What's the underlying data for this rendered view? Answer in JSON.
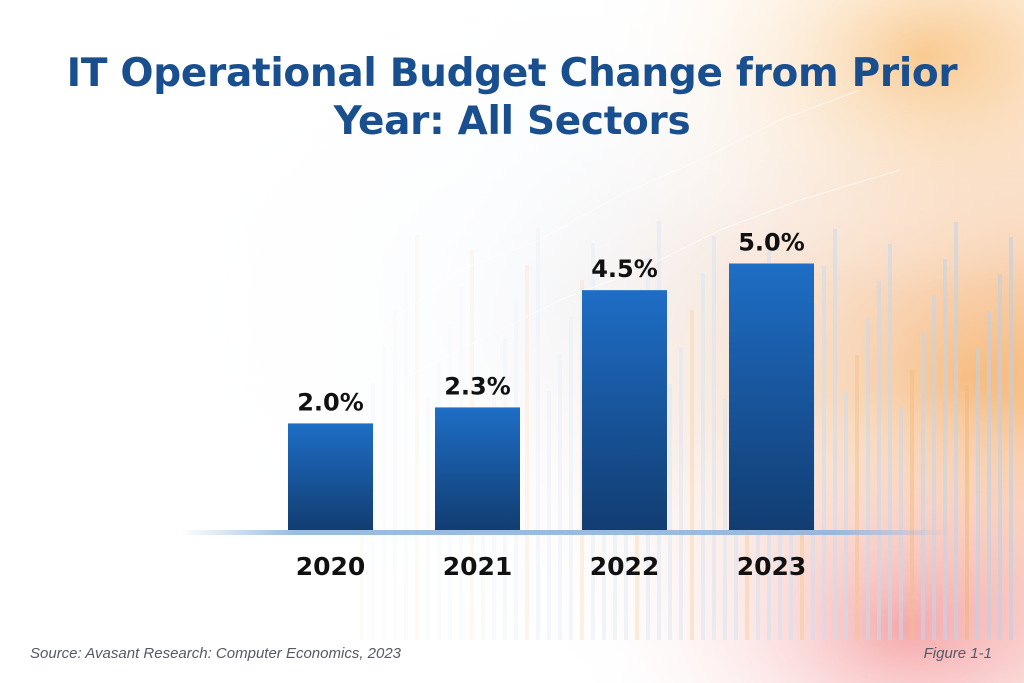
{
  "chart_data": {
    "type": "bar",
    "title": "IT Operational Budget Change from Prior Year: All Sectors",
    "categories": [
      "2020",
      "2021",
      "2022",
      "2023"
    ],
    "values": [
      2.0,
      2.3,
      4.5,
      5.0
    ],
    "value_labels": [
      "2.0%",
      "2.3%",
      "4.5%",
      "5.0%"
    ],
    "xlabel": "",
    "ylabel": "",
    "ylim": [
      0,
      5.5
    ],
    "grid": false,
    "legend": "none",
    "bar_color_top": "#1e6ec6",
    "bar_color_bottom": "#123d72"
  },
  "footer": {
    "source": "Source: Avasant Research: Computer Economics, 2023",
    "figure": "Figure 1-1"
  },
  "colors": {
    "title": "#1a4f8f",
    "accent_orange": "#f2a24a",
    "accent_red": "#e8545c",
    "accent_blue": "#7aa7d8"
  }
}
